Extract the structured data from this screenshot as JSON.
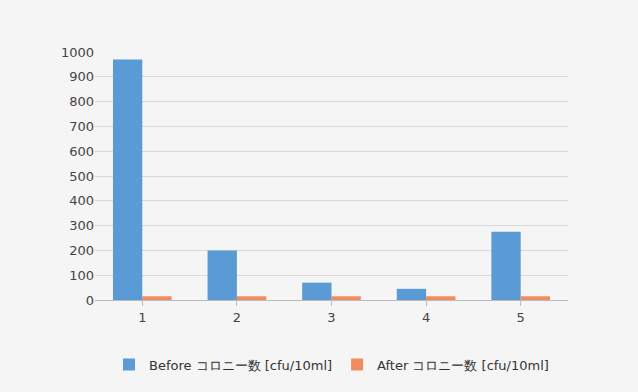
{
  "chart_data": {
    "type": "bar",
    "categories": [
      "1",
      "2",
      "3",
      "4",
      "5"
    ],
    "series": [
      {
        "name": "Before コロニー数 [cfu/10ml]",
        "color": "#5b9bd5",
        "values": [
          970,
          200,
          70,
          45,
          275
        ]
      },
      {
        "name": "After コロニー数 [cfu/10ml]",
        "color": "#f08c5f",
        "values": [
          15,
          15,
          15,
          15,
          15
        ]
      }
    ],
    "ylim": [
      0,
      1000
    ],
    "yticks": [
      0,
      100,
      200,
      300,
      400,
      500,
      600,
      700,
      800,
      900,
      1000
    ],
    "grid": true,
    "legend": "bottom"
  }
}
